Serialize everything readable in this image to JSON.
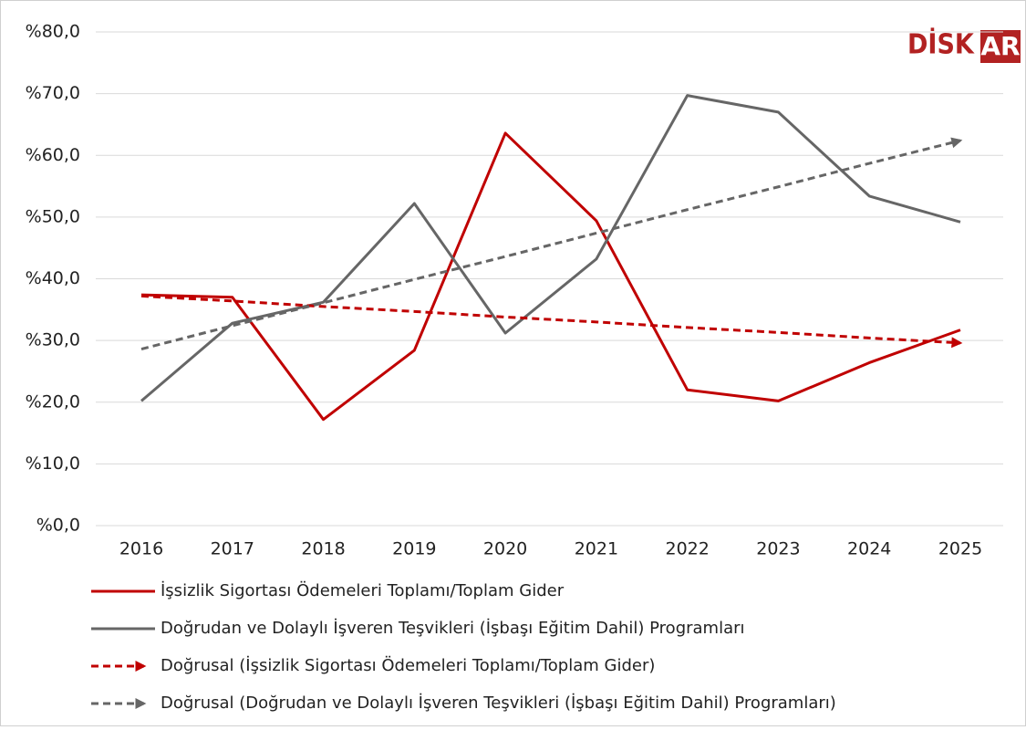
{
  "chart_data": {
    "type": "line",
    "logo": {
      "left": "DİSK",
      "right": "AR"
    },
    "categories": [
      "2016",
      "2017",
      "2018",
      "2019",
      "2020",
      "2021",
      "2022",
      "2023",
      "2024",
      "2025"
    ],
    "ylim": [
      0,
      80
    ],
    "yticks": [
      {
        "value": 0,
        "label": "%0,0"
      },
      {
        "value": 10,
        "label": "%10,0"
      },
      {
        "value": 20,
        "label": "%20,0"
      },
      {
        "value": 30,
        "label": "%30,0"
      },
      {
        "value": 40,
        "label": "%40,0"
      },
      {
        "value": 50,
        "label": "%50,0"
      },
      {
        "value": 60,
        "label": "%60,0"
      },
      {
        "value": 70,
        "label": "%70,0"
      },
      {
        "value": 80,
        "label": "%80,0"
      }
    ],
    "grid": true,
    "series": [
      {
        "name": "İşsizlik Sigortası Ödemeleri Toplamı/Toplam Gider",
        "color": "#c00000",
        "dashed": false,
        "values": [
          37.4,
          37.0,
          17.2,
          28.4,
          63.6,
          49.4,
          22.0,
          20.2,
          26.4,
          31.7
        ]
      },
      {
        "name": "Doğrudan ve Dolaylı İşveren Teşvikleri (İşbaşı Eğitim Dahil) Programları",
        "color": "#666666",
        "dashed": false,
        "values": [
          20.2,
          32.8,
          36.2,
          52.2,
          31.2,
          43.2,
          69.7,
          67.0,
          53.4,
          49.2
        ]
      },
      {
        "name": "Doğrusal (İşsizlik Sigortası Ödemeleri Toplamı/Toplam Gider)",
        "color": "#c00000",
        "dashed": true,
        "values": [
          37.2,
          36.4,
          35.5,
          34.7,
          33.8,
          33.0,
          32.1,
          31.3,
          30.4,
          29.6
        ]
      },
      {
        "name": "Doğrusal (Doğrudan ve Dolaylı İşveren Teşvikleri (İşbaşı Eğitim Dahil) Programları)",
        "color": "#666666",
        "dashed": true,
        "values": [
          28.6,
          32.4,
          36.1,
          39.9,
          43.6,
          47.4,
          51.2,
          54.9,
          58.7,
          62.4
        ]
      }
    ]
  }
}
